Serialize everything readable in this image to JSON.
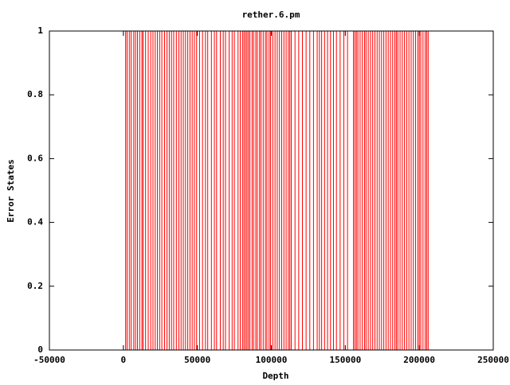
{
  "chart_data": {
    "type": "impulse",
    "title": "rether.6.pm",
    "xlabel": "Depth",
    "ylabel": "Error States",
    "color": "#ff0000",
    "x": [
      1500,
      2500,
      4000,
      5200,
      7000,
      8200,
      9500,
      11000,
      12500,
      13300,
      15000,
      16800,
      18500,
      20000,
      21500,
      23000,
      24500,
      26000,
      27800,
      29500,
      31000,
      32500,
      34000,
      35800,
      37500,
      39000,
      40500,
      42000,
      43500,
      45000,
      46500,
      48000,
      49500,
      51500,
      53500,
      55500,
      57000,
      59500,
      61500,
      63000,
      65500,
      67500,
      69000,
      71500,
      73500,
      75000,
      77500,
      79000,
      80500,
      81500,
      82500,
      83500,
      84500,
      85500,
      87000,
      88000,
      89500,
      90500,
      92000,
      93000,
      94500,
      96000,
      97000,
      98500,
      99500,
      101000,
      102500,
      104000,
      105500,
      107000,
      108500,
      110000,
      111500,
      112500,
      113500,
      116000,
      118500,
      121000,
      123500,
      126000,
      128500,
      131000,
      132500,
      134000,
      136000,
      138000,
      140000,
      142000,
      144000,
      146500,
      149000,
      151500,
      155500,
      156500,
      157500,
      158500,
      160000,
      161500,
      163000,
      164000,
      165500,
      167000,
      168500,
      170000,
      171500,
      173000,
      174500,
      176000,
      177500,
      179000,
      180500,
      182000,
      183500,
      184500,
      185500,
      187000,
      188500,
      190000,
      191500,
      193000,
      194500,
      196000,
      197500,
      199000,
      200000,
      201000,
      202500,
      204000,
      205000,
      206000
    ],
    "values": [
      1,
      1,
      1,
      1,
      1,
      1,
      1,
      1,
      1,
      1,
      1,
      1,
      1,
      1,
      1,
      1,
      1,
      1,
      1,
      1,
      1,
      1,
      1,
      1,
      1,
      1,
      1,
      1,
      1,
      1,
      1,
      1,
      1,
      1,
      1,
      1,
      1,
      1,
      1,
      1,
      1,
      1,
      1,
      1,
      1,
      1,
      1,
      1,
      1,
      1,
      1,
      1,
      1,
      1,
      1,
      1,
      1,
      1,
      1,
      1,
      1,
      1,
      1,
      1,
      1,
      1,
      1,
      1,
      1,
      1,
      1,
      1,
      1,
      1,
      1,
      1,
      1,
      1,
      1,
      1,
      1,
      1,
      1,
      1,
      1,
      1,
      1,
      1,
      1,
      1,
      1,
      1,
      1,
      1,
      1,
      1,
      1,
      1,
      1,
      1,
      1,
      1,
      1,
      1,
      1,
      1,
      1,
      1,
      1,
      1,
      1,
      1,
      1,
      1,
      1,
      1,
      1,
      1,
      1,
      1,
      1,
      1,
      1,
      1,
      1,
      1,
      1,
      1,
      1,
      1
    ],
    "xlim": [
      -50000,
      250000
    ],
    "xticks": [
      -50000,
      0,
      50000,
      100000,
      150000,
      200000,
      250000
    ],
    "ylim": [
      0,
      1
    ],
    "yticks": [
      0,
      0.2,
      0.4,
      0.6,
      0.8,
      1
    ]
  }
}
